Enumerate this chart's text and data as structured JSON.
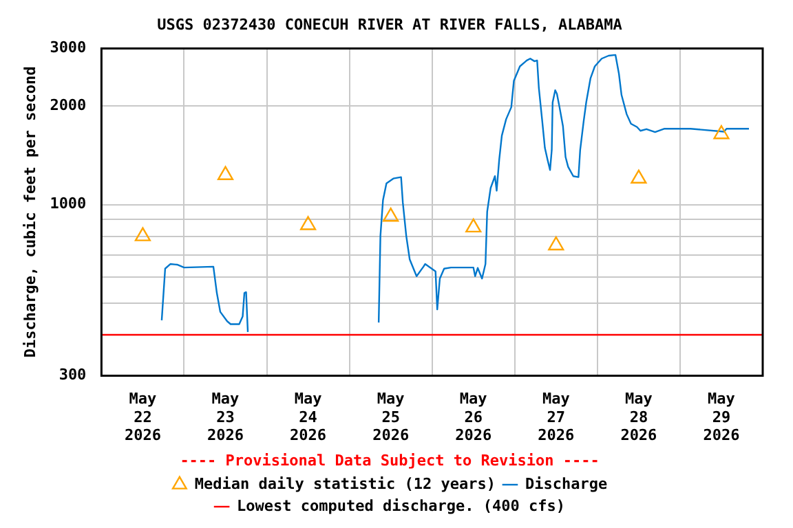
{
  "chart_data": {
    "type": "line",
    "title": "USGS 02372430 CONECUH RIVER AT RIVER FALLS, ALABAMA",
    "ylabel": "Discharge, cubic feet per second",
    "annotations": [
      "---- Provisional Data Subject to Revision ----"
    ],
    "log": "y",
    "grid": true,
    "legend": "bottom",
    "xlim": [
      "2026-05-22T00:00",
      "2026-05-30T00:00"
    ],
    "xticks": [
      {
        "value": "2026-05-22T00:00",
        "label": null
      },
      {
        "value": "2026-05-22T12:00",
        "label": "May 22 2026"
      },
      {
        "value": "2026-05-23T00:00",
        "label": null
      },
      {
        "value": "2026-05-23T12:00",
        "label": "May 23 2026"
      },
      {
        "value": "2026-05-24T00:00",
        "label": null
      },
      {
        "value": "2026-05-24T12:00",
        "label": "May 24 2026"
      },
      {
        "value": "2026-05-25T00:00",
        "label": null
      },
      {
        "value": "2026-05-25T12:00",
        "label": "May 25 2026"
      },
      {
        "value": "2026-05-26T00:00",
        "label": null
      },
      {
        "value": "2026-05-26T12:00",
        "label": "May 26 2026"
      },
      {
        "value": "2026-05-27T00:00",
        "label": null
      },
      {
        "value": "2026-05-27T12:00",
        "label": "May 27 2026"
      },
      {
        "value": "2026-05-28T00:00",
        "label": null
      },
      {
        "value": "2026-05-28T12:00",
        "label": "May 28 2026"
      },
      {
        "value": "2026-05-29T00:00",
        "label": null
      },
      {
        "value": "2026-05-29T12:00",
        "label": "May 29 2026"
      },
      {
        "value": "2026-05-30T00:00",
        "label": null
      }
    ],
    "ylim": [
      300,
      3000
    ],
    "yticks": [
      300,
      {
        "value": 400,
        "label": null
      },
      {
        "value": 500,
        "label": null
      },
      {
        "value": 600,
        "label": null
      },
      {
        "value": 700,
        "label": null
      },
      {
        "value": 800,
        "label": null
      },
      {
        "value": 900,
        "label": null
      },
      1000,
      2000,
      3000
    ],
    "ref_lines": [
      {
        "axis": "y",
        "value": 400,
        "label": "Lowest computed discharge. (400 cfs)",
        "color": "#ff0000"
      }
    ],
    "series": [
      {
        "name": "Median daily statistic (12 years)",
        "type": "scatter",
        "marker": "triangle",
        "color": "#ffa500",
        "x": [
          "2026-05-22T12:00",
          "2026-05-23T12:00",
          "2026-05-24T12:00",
          "2026-05-25T12:00",
          "2026-05-26T12:00",
          "2026-05-27T12:00",
          "2026-05-28T12:00",
          "2026-05-29T12:00"
        ],
        "values": [
          800,
          1230,
          865,
          918,
          851,
          750,
          1200,
          1640
        ]
      },
      {
        "name": "Discharge",
        "type": "line",
        "marker": "none",
        "color": "#0077cc",
        "x": [
          "2026-05-22T17:30",
          "2026-05-22T18:30",
          "2026-05-22T20:00",
          "2026-05-22T22:00",
          "2026-05-23T00:00",
          "2026-05-23T08:30",
          "2026-05-23T09:30",
          "2026-05-23T10:30",
          "2026-05-23T12:30",
          "2026-05-23T13:30",
          "2026-05-23T16:00",
          "2026-05-23T17:00",
          "2026-05-23T17:30",
          "2026-05-23T18:00",
          "2026-05-23T18:30",
          "2026-05-23T19:00",
          "2026-05-25T08:30",
          "2026-05-25T09:00",
          "2026-05-25T09:45",
          "2026-05-25T10:45",
          "2026-05-25T12:45",
          "2026-05-25T15:00",
          "2026-05-25T15:30",
          "2026-05-25T16:30",
          "2026-05-25T17:30",
          "2026-05-25T19:30",
          "2026-05-25T21:30",
          "2026-05-25T22:00",
          "2026-05-26T01:00",
          "2026-05-26T01:30",
          "2026-05-26T02:15",
          "2026-05-26T03:30",
          "2026-05-26T05:30",
          "2026-05-26T12:00",
          "2026-05-26T12:30",
          "2026-05-26T13:15",
          "2026-05-26T14:30",
          "2026-05-26T15:30",
          "2026-05-26T16:00",
          "2026-05-26T17:00",
          "2026-05-26T18:15",
          "2026-05-26T18:45",
          "2026-05-26T19:30",
          "2026-05-26T20:15",
          "2026-05-26T21:30",
          "2026-05-26T23:00",
          "2026-05-26T23:45",
          "2026-05-27T01:30",
          "2026-05-27T03:30",
          "2026-05-27T04:30",
          "2026-05-27T05:45",
          "2026-05-27T06:30",
          "2026-05-27T07:00",
          "2026-05-27T08:00",
          "2026-05-27T08:45",
          "2026-05-27T09:30",
          "2026-05-27T10:15",
          "2026-05-27T10:45",
          "2026-05-27T11:00",
          "2026-05-27T11:45",
          "2026-05-27T12:15",
          "2026-05-27T13:00",
          "2026-05-27T14:00",
          "2026-05-27T14:45",
          "2026-05-27T15:30",
          "2026-05-27T17:00",
          "2026-05-27T18:30",
          "2026-05-27T19:00",
          "2026-05-27T20:00",
          "2026-05-27T20:45",
          "2026-05-27T22:00",
          "2026-05-27T23:15",
          "2026-05-28T01:15",
          "2026-05-28T03:15",
          "2026-05-28T05:15",
          "2026-05-28T06:15",
          "2026-05-28T07:00",
          "2026-05-28T08:30",
          "2026-05-28T09:45",
          "2026-05-28T11:30",
          "2026-05-28T12:30",
          "2026-05-28T14:15",
          "2026-05-28T16:45",
          "2026-05-28T19:30",
          "2026-05-29T03:00",
          "2026-05-29T12:45",
          "2026-05-29T13:30",
          "2026-05-29T20:00"
        ],
        "values": [
          443,
          637,
          658,
          655,
          642,
          646,
          537,
          470,
          440,
          431,
          431,
          455,
          537,
          540,
          408,
          null,
          436,
          802,
          1032,
          1161,
          1201,
          1213,
          1015,
          802,
          680,
          604,
          646,
          658,
          625,
          478,
          594,
          637,
          642,
          642,
          604,
          640,
          594,
          658,
          951,
          1123,
          1221,
          1102,
          1374,
          1623,
          1823,
          1984,
          2389,
          2644,
          2757,
          2792,
          2740,
          2757,
          2271,
          1793,
          1490,
          1374,
          1275,
          1468,
          2051,
          2235,
          2180,
          1984,
          1736,
          1398,
          1304,
          1221,
          1213,
          1468,
          1793,
          2051,
          2432,
          2644,
          2792,
          2850,
          2865,
          2510,
          2163,
          1888,
          1765,
          1725,
          1680,
          1700,
          1665,
          1705,
          1705,
          1670,
          1705,
          1705
        ]
      }
    ]
  }
}
